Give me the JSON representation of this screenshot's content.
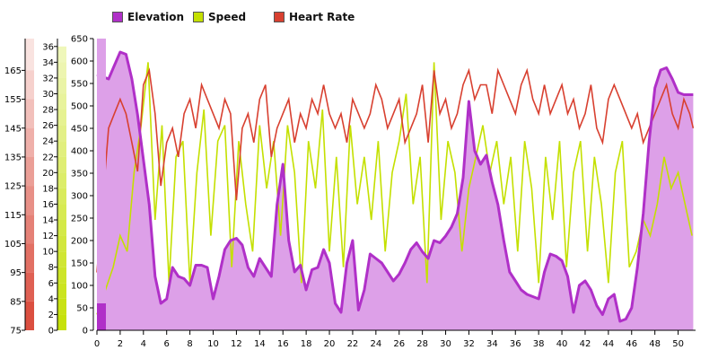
{
  "chart_data": {
    "type": "area",
    "x_ticks": [
      0,
      2,
      4,
      6,
      8,
      10,
      12,
      14,
      16,
      18,
      20,
      22,
      24,
      26,
      28,
      30,
      32,
      34,
      36,
      38,
      40,
      42,
      44,
      46,
      48,
      50
    ],
    "xlim": [
      0,
      51.5
    ],
    "legend_position": "top-left",
    "grid": false,
    "axes": {
      "elevation": {
        "ticks": [
          0,
          50,
          100,
          150,
          200,
          250,
          300,
          350,
          400,
          450,
          500,
          550,
          600,
          650
        ],
        "ylim": [
          0,
          650
        ]
      },
      "speed": {
        "ticks": [
          0,
          2,
          4,
          6,
          8,
          10,
          12,
          14,
          16,
          18,
          20,
          22,
          24,
          26,
          28,
          30,
          32,
          34,
          36
        ],
        "ylim": [
          0,
          37
        ]
      },
      "heart_rate": {
        "ticks": [
          75,
          85,
          95,
          105,
          115,
          125,
          135,
          145,
          155,
          165
        ],
        "ylim": [
          75,
          176
        ]
      }
    },
    "series": [
      {
        "name": "Elevation",
        "key": "elevation",
        "color": "#b030c8",
        "fill": "#dda0e8",
        "x": [
          0,
          0.5,
          1,
          1.5,
          2,
          2.5,
          3,
          3.5,
          4,
          4.5,
          5,
          5.5,
          6,
          6.5,
          7,
          7.5,
          8,
          8.5,
          9,
          9.5,
          10,
          10.5,
          11,
          11.5,
          12,
          12.5,
          13,
          13.5,
          14,
          14.5,
          15,
          15.5,
          16,
          16.5,
          17,
          17.5,
          18,
          18.5,
          19,
          19.5,
          20,
          20.5,
          21,
          21.5,
          22,
          22.5,
          23,
          23.5,
          24,
          24.5,
          25,
          25.5,
          26,
          26.5,
          27,
          27.5,
          28,
          28.5,
          29,
          29.5,
          30,
          30.5,
          31,
          31.5,
          32,
          32.5,
          33,
          33.5,
          34,
          34.5,
          35,
          35.5,
          36,
          36.5,
          37,
          37.5,
          38,
          38.5,
          39,
          39.5,
          40,
          40.5,
          41,
          41.5,
          42,
          42.5,
          43,
          43.5,
          44,
          44.5,
          45,
          45.5,
          46,
          46.5,
          47,
          47.5,
          48,
          48.5,
          49,
          49.5,
          50,
          50.5,
          51,
          51.3
        ],
        "values": [
          570,
          565,
          560,
          590,
          620,
          615,
          560,
          480,
          380,
          280,
          120,
          60,
          70,
          140,
          120,
          115,
          100,
          145,
          145,
          140,
          70,
          120,
          180,
          200,
          205,
          190,
          140,
          120,
          160,
          140,
          120,
          280,
          370,
          200,
          130,
          145,
          90,
          135,
          140,
          180,
          150,
          60,
          40,
          150,
          200,
          45,
          90,
          170,
          160,
          150,
          130,
          110,
          125,
          150,
          180,
          195,
          175,
          160,
          200,
          195,
          210,
          230,
          260,
          340,
          510,
          400,
          370,
          390,
          330,
          280,
          200,
          130,
          110,
          90,
          80,
          75,
          70,
          130,
          170,
          165,
          155,
          120,
          40,
          100,
          110,
          90,
          55,
          35,
          70,
          80,
          20,
          25,
          50,
          140,
          260,
          420,
          540,
          580,
          585,
          560,
          530,
          525,
          525,
          525
        ]
      },
      {
        "name": "Speed",
        "key": "speed",
        "color": "#c4e000",
        "x": [
          0,
          0.7,
          1.4,
          2,
          2.6,
          3.2,
          3.8,
          4.4,
          5,
          5.6,
          6.2,
          6.8,
          7.4,
          8,
          8.6,
          9.2,
          9.8,
          10.4,
          11,
          11.6,
          12.2,
          12.8,
          13.4,
          14,
          14.6,
          15.2,
          15.8,
          16.4,
          17,
          17.6,
          18.2,
          18.8,
          19.4,
          20,
          20.6,
          21.2,
          21.8,
          22.4,
          23,
          23.6,
          24.2,
          24.8,
          25.4,
          26,
          26.6,
          27.2,
          27.8,
          28.4,
          29,
          29.6,
          30.2,
          30.8,
          31.4,
          32,
          32.6,
          33.2,
          33.8,
          34.4,
          35,
          35.6,
          36.2,
          36.8,
          37.4,
          38,
          38.6,
          39.2,
          39.8,
          40.4,
          41,
          41.6,
          42.2,
          42.8,
          43.4,
          44,
          44.6,
          45.2,
          45.8,
          46.4,
          47,
          47.6,
          48.2,
          48.8,
          49.4,
          50,
          50.6,
          51.2
        ],
        "values": [
          2,
          5,
          8,
          12,
          10,
          20,
          26,
          34,
          14,
          26,
          6,
          22,
          24,
          6,
          20,
          28,
          12,
          24,
          26,
          8,
          24,
          16,
          10,
          26,
          18,
          24,
          12,
          26,
          20,
          6,
          24,
          18,
          28,
          10,
          22,
          8,
          26,
          16,
          22,
          14,
          24,
          10,
          20,
          24,
          30,
          16,
          22,
          6,
          34,
          14,
          24,
          20,
          10,
          18,
          22,
          26,
          20,
          24,
          16,
          22,
          10,
          24,
          18,
          6,
          22,
          14,
          24,
          8,
          20,
          24,
          10,
          22,
          16,
          6,
          20,
          24,
          8,
          10,
          14,
          12,
          16,
          22,
          18,
          20,
          16,
          12
        ]
      },
      {
        "name": "Heart Rate",
        "key": "heart_rate",
        "color": "#d84030",
        "x": [
          0,
          0.5,
          1,
          1.5,
          2,
          2.5,
          3,
          3.5,
          4,
          4.5,
          5,
          5.5,
          6,
          6.5,
          7,
          7.5,
          8,
          8.5,
          9,
          9.5,
          10,
          10.5,
          11,
          11.5,
          12,
          12.5,
          13,
          13.5,
          14,
          14.5,
          15,
          15.5,
          16,
          16.5,
          17,
          17.5,
          18,
          18.5,
          19,
          19.5,
          20,
          20.5,
          21,
          21.5,
          22,
          22.5,
          23,
          23.5,
          24,
          24.5,
          25,
          25.5,
          26,
          26.5,
          27,
          27.5,
          28,
          28.5,
          29,
          29.5,
          30,
          30.5,
          31,
          31.5,
          32,
          32.5,
          33,
          33.5,
          34,
          34.5,
          35,
          35.5,
          36,
          36.5,
          37,
          37.5,
          38,
          38.5,
          39,
          39.5,
          40,
          40.5,
          41,
          41.5,
          42,
          42.5,
          43,
          43.5,
          44,
          44.5,
          45,
          45.5,
          46,
          46.5,
          47,
          47.5,
          48,
          48.5,
          49,
          49.5,
          50,
          50.5,
          51,
          51.3
        ],
        "values": [
          95,
          120,
          145,
          150,
          155,
          150,
          140,
          130,
          160,
          165,
          150,
          125,
          140,
          145,
          135,
          150,
          155,
          145,
          160,
          155,
          150,
          145,
          155,
          150,
          120,
          145,
          150,
          140,
          155,
          160,
          135,
          145,
          150,
          155,
          140,
          150,
          145,
          155,
          150,
          160,
          150,
          145,
          150,
          140,
          155,
          150,
          145,
          150,
          160,
          155,
          145,
          150,
          155,
          140,
          145,
          150,
          160,
          140,
          165,
          150,
          155,
          145,
          150,
          160,
          165,
          155,
          160,
          160,
          150,
          165,
          160,
          155,
          150,
          160,
          165,
          155,
          150,
          160,
          150,
          155,
          160,
          150,
          155,
          145,
          150,
          160,
          145,
          140,
          155,
          160,
          155,
          150,
          145,
          150,
          140,
          145,
          150,
          155,
          160,
          150,
          145,
          155,
          150,
          145
        ]
      }
    ]
  }
}
